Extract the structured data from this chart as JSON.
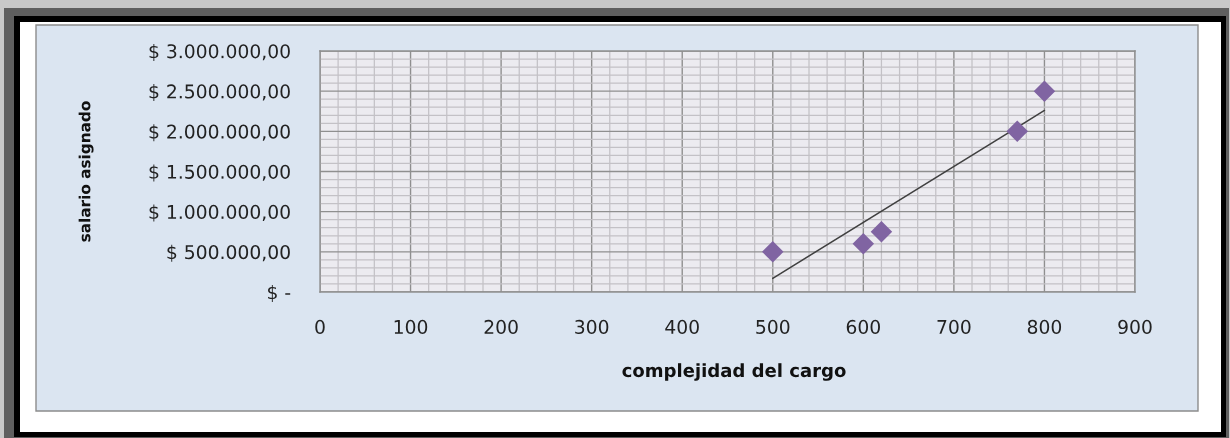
{
  "chart_data": {
    "type": "scatter",
    "xlabel": "complejidad del cargo",
    "ylabel": "salario asignado",
    "series": [
      {
        "color": "#8064a2",
        "marker": "diamond",
        "x": [
          500,
          600,
          620,
          770,
          800
        ],
        "values": [
          500000,
          600000,
          750000,
          2000000,
          2500000
        ]
      },
      {
        "type": "line",
        "color": "#404040",
        "marker": "none",
        "line_style": "solid",
        "x": [
          500,
          800
        ],
        "values": [
          170000,
          2260000
        ]
      }
    ],
    "xlim": [
      0,
      900
    ],
    "xticks": [
      0,
      100,
      200,
      300,
      400,
      500,
      600,
      700,
      800,
      900
    ],
    "ylim": [
      0,
      3000000
    ],
    "yticks": [
      {
        "value": 0,
        "label": "$ -"
      },
      {
        "value": 500000,
        "label": "$ 500.000,00"
      },
      {
        "value": 1000000,
        "label": "$ 1.000.000,00"
      },
      {
        "value": 1500000,
        "label": "$ 1.500.000,00"
      },
      {
        "value": 2000000,
        "label": "$ 2.000.000,00"
      },
      {
        "value": 2500000,
        "label": "$ 2.500.000,00"
      },
      {
        "value": 3000000,
        "label": "$ 3.000.000,00"
      }
    ],
    "grid": true
  }
}
